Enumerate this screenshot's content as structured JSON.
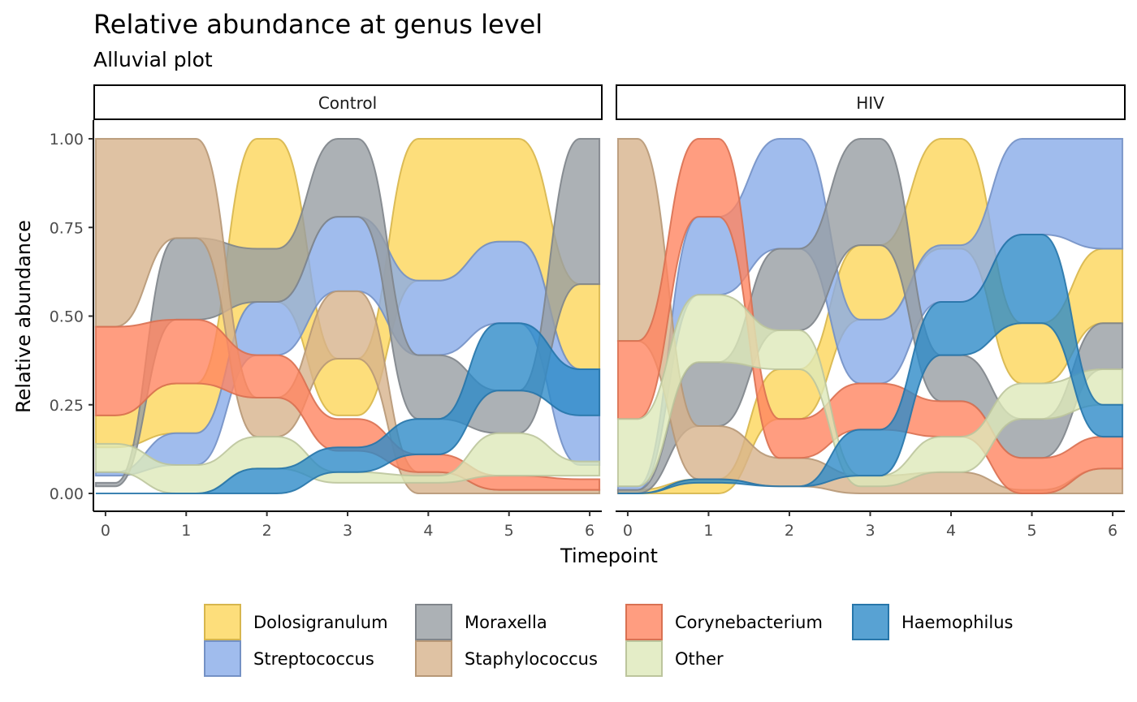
{
  "chart_data": {
    "type": "area",
    "subtype": "alluvial",
    "title": "Relative abundance at genus level",
    "subtitle": "Alluvial plot",
    "xlabel": "Timepoint",
    "ylabel": "Relative abundance",
    "xlim": [
      -0.15,
      6.15
    ],
    "ylim": [
      0,
      1
    ],
    "x": [
      0,
      1,
      2,
      3,
      4,
      5,
      6
    ],
    "x_ticks": [
      "0",
      "1",
      "2",
      "3",
      "4",
      "5",
      "6"
    ],
    "y_ticks": [
      "0.00",
      "0.25",
      "0.50",
      "0.75",
      "1.00"
    ],
    "grid": false,
    "legend_position": "bottom",
    "series": [
      {
        "name": "Dolosigranulum",
        "color": "#FDD65A"
      },
      {
        "name": "Streptococcus",
        "color": "#88ABE8"
      },
      {
        "name": "Moraxella",
        "color": "#979DA3"
      },
      {
        "name": "Staphylococcus",
        "color": "#D7B38C"
      },
      {
        "name": "Corynebacterium",
        "color": "#FF8560"
      },
      {
        "name": "Other",
        "color": "#DDE8B9"
      },
      {
        "name": "Haemophilus",
        "color": "#2E8BC8"
      }
    ],
    "panels": [
      {
        "label": "Control",
        "bands": {
          "Dolosigranulum": [
            [
              0.13,
              0.22
            ],
            [
              0.17,
              0.31
            ],
            [
              0.54,
              1.0
            ],
            [
              0.22,
              0.38
            ],
            [
              0.6,
              1.0
            ],
            [
              0.71,
              1.0
            ],
            [
              0.35,
              0.59
            ]
          ],
          "Streptococcus": [
            [
              0.05,
              0.06
            ],
            [
              0.08,
              0.17
            ],
            [
              0.39,
              0.54
            ],
            [
              0.57,
              0.78
            ],
            [
              0.39,
              0.6
            ],
            [
              0.48,
              0.71
            ],
            [
              0.08,
              0.35
            ]
          ],
          "Moraxella": [
            [
              0.02,
              0.03
            ],
            [
              0.49,
              0.72
            ],
            [
              0.54,
              0.69
            ],
            [
              0.78,
              1.0
            ],
            [
              0.21,
              0.39
            ],
            [
              0.17,
              0.29
            ],
            [
              0.59,
              1.0
            ]
          ],
          "Staphylococcus": [
            [
              0.47,
              1.0
            ],
            [
              0.72,
              1.0
            ],
            [
              0.16,
              0.27
            ],
            [
              0.38,
              0.57
            ],
            [
              0.0,
              0.06
            ],
            [
              0.0,
              0.01
            ],
            [
              0.0,
              0.01
            ]
          ],
          "Corynebacterium": [
            [
              0.22,
              0.47
            ],
            [
              0.31,
              0.49
            ],
            [
              0.27,
              0.39
            ],
            [
              0.12,
              0.21
            ],
            [
              0.06,
              0.11
            ],
            [
              0.01,
              0.05
            ],
            [
              0.01,
              0.04
            ]
          ],
          "Other": [
            [
              0.06,
              0.14
            ],
            [
              0.0,
              0.08
            ],
            [
              0.07,
              0.16
            ],
            [
              0.03,
              0.06
            ],
            [
              0.03,
              0.05
            ],
            [
              0.05,
              0.17
            ],
            [
              0.05,
              0.09
            ]
          ],
          "Haemophilus": [
            [
              0.0,
              0.0
            ],
            [
              0.0,
              0.0
            ],
            [
              0.0,
              0.07
            ],
            [
              0.06,
              0.13
            ],
            [
              0.11,
              0.21
            ],
            [
              0.29,
              0.48
            ],
            [
              0.22,
              0.35
            ]
          ]
        }
      },
      {
        "label": "HIV",
        "bands": {
          "Dolosigranulum": [
            [
              0.0,
              0.01
            ],
            [
              0.0,
              0.04
            ],
            [
              0.21,
              0.35
            ],
            [
              0.49,
              0.7
            ],
            [
              0.69,
              1.0
            ],
            [
              0.31,
              0.48
            ],
            [
              0.48,
              0.69
            ]
          ],
          "Streptococcus": [
            [
              0.01,
              0.02
            ],
            [
              0.56,
              0.78
            ],
            [
              0.69,
              1.0
            ],
            [
              0.31,
              0.49
            ],
            [
              0.54,
              0.7
            ],
            [
              0.73,
              1.0
            ],
            [
              0.69,
              1.0
            ]
          ],
          "Moraxella": [
            [
              0.0,
              0.01
            ],
            [
              0.19,
              0.37
            ],
            [
              0.46,
              0.69
            ],
            [
              0.7,
              1.0
            ],
            [
              0.26,
              0.39
            ],
            [
              0.1,
              0.21
            ],
            [
              0.35,
              0.48
            ]
          ],
          "Staphylococcus": [
            [
              0.43,
              1.0
            ],
            [
              0.04,
              0.19
            ],
            [
              0.1,
              0.02
            ],
            [
              0.0,
              0.05
            ],
            [
              0.0,
              0.06
            ],
            [
              0.0,
              0.01
            ],
            [
              0.0,
              0.07
            ]
          ],
          "Corynebacterium": [
            [
              0.21,
              0.43
            ],
            [
              0.78,
              1.0
            ],
            [
              0.1,
              0.21
            ],
            [
              0.18,
              0.31
            ],
            [
              0.16,
              0.26
            ],
            [
              0.0,
              0.1
            ],
            [
              0.07,
              0.16
            ]
          ],
          "Other": [
            [
              0.02,
              0.21
            ],
            [
              0.37,
              0.56
            ],
            [
              0.35,
              0.46
            ],
            [
              0.02,
              0.05
            ],
            [
              0.06,
              0.16
            ],
            [
              0.21,
              0.31
            ],
            [
              0.25,
              0.35
            ]
          ],
          "Haemophilus": [
            [
              0.0,
              0.0
            ],
            [
              0.03,
              0.04
            ],
            [
              0.02,
              0.02
            ],
            [
              0.05,
              0.18
            ],
            [
              0.39,
              0.54
            ],
            [
              0.48,
              0.73
            ],
            [
              0.16,
              0.25
            ]
          ]
        }
      }
    ]
  }
}
